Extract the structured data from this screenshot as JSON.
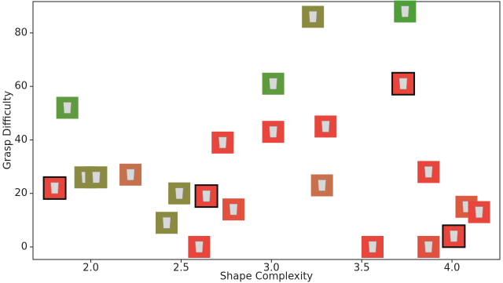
{
  "chart_data": {
    "type": "scatter",
    "x_label": "Shape Complexity",
    "y_label": "Grasp Difficulty",
    "xlim": [
      1.68,
      4.265
    ],
    "ylim": [
      -4.7,
      91.7
    ],
    "xticks": [
      {
        "value": 2,
        "label": "2.0"
      },
      {
        "value": 2.5,
        "label": "2.5"
      },
      {
        "value": 3,
        "label": "3.0"
      },
      {
        "value": 3.5,
        "label": "3.5"
      },
      {
        "value": 4,
        "label": "4.0"
      }
    ],
    "yticks": [
      0,
      20,
      40,
      60,
      80
    ],
    "x": [
      1.8,
      1.87,
      1.97,
      2.03,
      2.22,
      2.49,
      2.42,
      2.64,
      2.6,
      2.79,
      2.73,
      3.01,
      3.01,
      3.23,
      3.3,
      3.28,
      3.56,
      3.74,
      3.73,
      3.87,
      3.87,
      4.01,
      4.08,
      4.15
    ],
    "values": [
      22,
      52,
      26,
      26,
      27,
      20,
      9,
      19,
      0,
      14,
      39,
      61,
      43,
      86,
      45,
      23,
      0,
      88,
      61,
      28,
      0,
      4,
      15,
      13
    ],
    "colors": [
      "#e8463c",
      "#5e9a3e",
      "#8a8a40",
      "#8a8a40",
      "#c8704c",
      "#8a8a40",
      "#8a8a40",
      "#e8463c",
      "#e8463c",
      "#e2503e",
      "#e8463c",
      "#5e9a3e",
      "#e8463c",
      "#8a8a40",
      "#e8463c",
      "#c8704c",
      "#e8463c",
      "#4e9e3a",
      "#e8463c",
      "#e8463c",
      "#e2503e",
      "#e8463c",
      "#dc5a40",
      "#e8463c"
    ],
    "bordered": [
      true,
      false,
      false,
      false,
      false,
      false,
      false,
      true,
      false,
      false,
      false,
      false,
      false,
      false,
      false,
      false,
      false,
      false,
      true,
      false,
      false,
      true,
      false,
      false
    ]
  }
}
